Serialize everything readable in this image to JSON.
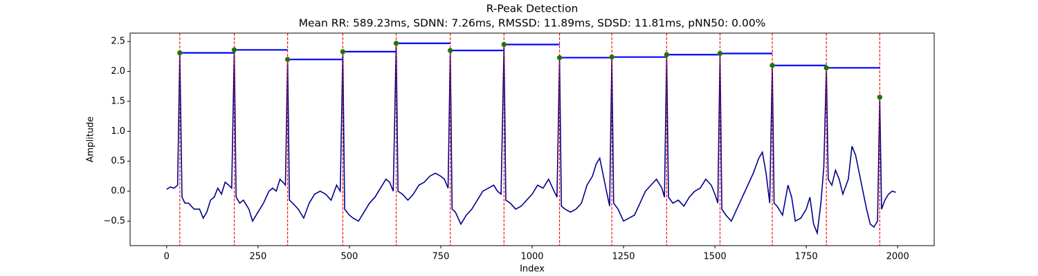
{
  "chart_data": {
    "type": "line",
    "title": "R-Peak Detection",
    "subtitle": "Mean RR: 589.23ms, SDNN: 7.26ms, RMSSD: 11.89ms, SDSD: 11.81ms, pNN50: 0.00%",
    "x_label": "Index",
    "y_label": "Amplitude",
    "xlim": [
      -100,
      2100
    ],
    "ylim": [
      -0.91,
      2.64
    ],
    "xticks": [
      0,
      250,
      500,
      750,
      1000,
      1250,
      1500,
      1750,
      2000
    ],
    "yticks": [
      {
        "value": -0.5,
        "label": "−0.5"
      },
      {
        "value": 0,
        "label": "0.0"
      },
      0.5,
      {
        "value": 1,
        "label": "1.0"
      },
      1.5,
      {
        "value": 2,
        "label": "2.0"
      },
      2.5
    ],
    "signal": {
      "color": "#00008b",
      "x": [
        0,
        10,
        20,
        30,
        36,
        42,
        50,
        60,
        75,
        90,
        100,
        110,
        120,
        130,
        140,
        150,
        160,
        170,
        178,
        185,
        190,
        200,
        210,
        225,
        235,
        250,
        265,
        280,
        290,
        300,
        310,
        318,
        325,
        331,
        336,
        345,
        360,
        375,
        390,
        405,
        420,
        435,
        450,
        465,
        475,
        482,
        487,
        500,
        510,
        525,
        540,
        555,
        570,
        585,
        600,
        610,
        620,
        628,
        633,
        645,
        660,
        675,
        690,
        705,
        720,
        735,
        750,
        760,
        770,
        776,
        781,
        790,
        805,
        820,
        835,
        850,
        865,
        880,
        895,
        905,
        915,
        923,
        928,
        940,
        955,
        970,
        985,
        1000,
        1015,
        1030,
        1045,
        1060,
        1068,
        1075,
        1080,
        1090,
        1105,
        1120,
        1135,
        1150,
        1165,
        1175,
        1185,
        1195,
        1205,
        1212,
        1218,
        1223,
        1235,
        1250,
        1265,
        1280,
        1295,
        1310,
        1325,
        1340,
        1355,
        1362,
        1368,
        1373,
        1385,
        1400,
        1415,
        1430,
        1445,
        1460,
        1475,
        1490,
        1500,
        1508,
        1514,
        1519,
        1530,
        1545,
        1560,
        1575,
        1590,
        1605,
        1620,
        1630,
        1640,
        1650,
        1657,
        1662,
        1670,
        1685,
        1700,
        1710,
        1720,
        1735,
        1750,
        1760,
        1770,
        1780,
        1790,
        1798,
        1805,
        1810,
        1820,
        1830,
        1840,
        1850,
        1865,
        1875,
        1885,
        1895,
        1905,
        1915,
        1925,
        1935,
        1945,
        1951,
        1956,
        1965,
        1975,
        1985,
        1995
      ],
      "values": [
        0.03,
        0.07,
        0.05,
        0.1,
        2.31,
        -0.1,
        -0.2,
        -0.2,
        -0.3,
        -0.3,
        -0.45,
        -0.35,
        -0.15,
        -0.1,
        0.05,
        -0.05,
        0.15,
        0.1,
        0.05,
        2.36,
        -0.1,
        -0.2,
        -0.15,
        -0.3,
        -0.5,
        -0.35,
        -0.2,
        0.0,
        0.05,
        0.0,
        0.2,
        0.15,
        0.1,
        2.2,
        -0.15,
        -0.2,
        -0.3,
        -0.45,
        -0.2,
        -0.05,
        0.0,
        -0.05,
        -0.15,
        0.1,
        0.0,
        2.33,
        -0.3,
        -0.4,
        -0.45,
        -0.5,
        -0.35,
        -0.2,
        -0.1,
        0.05,
        0.2,
        0.15,
        0.0,
        2.47,
        0.0,
        -0.05,
        -0.15,
        -0.05,
        0.1,
        0.15,
        0.25,
        0.3,
        0.25,
        0.2,
        0.05,
        2.35,
        -0.3,
        -0.35,
        -0.55,
        -0.4,
        -0.3,
        -0.15,
        0.0,
        0.05,
        0.1,
        0.0,
        -0.05,
        2.45,
        -0.15,
        -0.2,
        -0.3,
        -0.25,
        -0.15,
        -0.05,
        0.1,
        0.05,
        0.2,
        0.0,
        -0.1,
        2.23,
        -0.25,
        -0.3,
        -0.35,
        -0.3,
        -0.2,
        0.1,
        0.25,
        0.45,
        0.55,
        0.25,
        -0.05,
        -0.25,
        2.24,
        -0.2,
        -0.3,
        -0.5,
        -0.45,
        -0.4,
        -0.2,
        0.0,
        0.1,
        0.2,
        0.05,
        -0.1,
        2.28,
        -0.1,
        -0.2,
        -0.15,
        -0.25,
        -0.1,
        0.0,
        0.05,
        0.2,
        0.1,
        -0.05,
        -0.2,
        2.3,
        -0.3,
        -0.4,
        -0.5,
        -0.3,
        -0.1,
        0.1,
        0.3,
        0.55,
        0.65,
        0.3,
        -0.2,
        2.1,
        -0.2,
        -0.25,
        -0.4,
        0.1,
        -0.1,
        -0.5,
        -0.45,
        -0.3,
        -0.1,
        -0.55,
        -0.7,
        -0.2,
        0.4,
        2.06,
        0.2,
        0.1,
        0.35,
        0.2,
        -0.05,
        0.2,
        0.75,
        0.6,
        0.3,
        0.0,
        -0.3,
        -0.55,
        -0.6,
        -0.5,
        1.57,
        -0.3,
        -0.15,
        -0.05,
        0.0,
        -0.02
      ]
    },
    "peaks": {
      "color": "green",
      "line_color": "red",
      "interval_color": "#0000ff",
      "x": [
        36,
        185,
        331,
        482,
        628,
        776,
        923,
        1075,
        1218,
        1368,
        1514,
        1657,
        1805,
        1951
      ],
      "values": [
        2.31,
        2.36,
        2.2,
        2.33,
        2.47,
        2.35,
        2.45,
        2.23,
        2.24,
        2.28,
        2.3,
        2.1,
        2.06,
        1.57
      ]
    }
  }
}
